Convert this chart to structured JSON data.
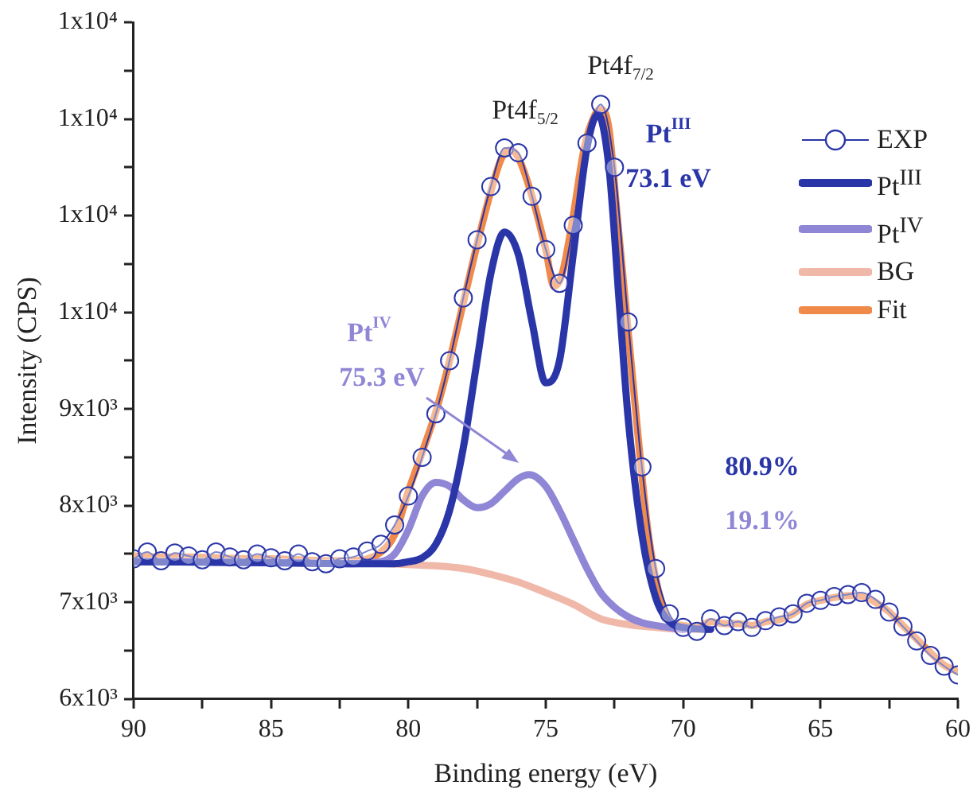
{
  "chart_data": {
    "type": "line",
    "xlabel": "Binding energy (eV)",
    "ylabel": "Intensity (CPS)",
    "xlim": [
      90,
      60
    ],
    "xticks": [
      90,
      {
        "value": 87.5,
        "label": null
      },
      85,
      {
        "value": 82.5,
        "label": null
      },
      80,
      {
        "value": 77.5,
        "label": null
      },
      75,
      {
        "value": 72.5,
        "label": null
      },
      70,
      {
        "value": 67.5,
        "label": null
      },
      65,
      {
        "value": 62.5,
        "label": null
      },
      60
    ],
    "ylim": [
      6000,
      13000
    ],
    "yticks": [
      {
        "value": 6000,
        "label": "6x10³"
      },
      {
        "value": 6500,
        "label": null
      },
      {
        "value": 7000,
        "label": "7x10³"
      },
      {
        "value": 7500,
        "label": null
      },
      {
        "value": 8000,
        "label": "8x10³"
      },
      {
        "value": 8500,
        "label": null
      },
      {
        "value": 9000,
        "label": "9x10³"
      },
      {
        "value": 9500,
        "label": null
      },
      {
        "value": 10000,
        "label": "1x10⁴"
      },
      {
        "value": 10500,
        "label": null
      },
      {
        "value": 11000,
        "label": "1x10⁴"
      },
      {
        "value": 11500,
        "label": null
      },
      {
        "value": 12000,
        "label": "1x10⁴"
      },
      {
        "value": 12500,
        "label": null
      },
      {
        "value": 13000,
        "label": "1x10⁴"
      }
    ],
    "grid": false,
    "legend": "top right",
    "series": [
      {
        "name": "EXP",
        "color": "#2a36a8",
        "marker": "circle",
        "x": [
          90,
          89.5,
          89,
          88.5,
          88,
          87.5,
          87,
          86.5,
          86,
          85.5,
          85,
          84.5,
          84,
          83.5,
          83,
          82.5,
          82,
          81.5,
          81,
          80.5,
          80,
          79.5,
          79,
          78.5,
          78,
          77.5,
          77,
          76.5,
          76,
          75.5,
          75,
          74.5,
          74,
          73.5,
          73,
          72.5,
          72,
          71.5,
          71,
          70.5,
          70,
          69.5,
          69,
          68.5,
          68,
          67.5,
          67,
          66.5,
          66,
          65.5,
          65,
          64.5,
          64,
          63.5,
          63,
          62.5,
          62,
          61.5,
          61,
          60.5,
          60
        ],
        "values": [
          7450,
          7520,
          7430,
          7510,
          7480,
          7440,
          7520,
          7470,
          7440,
          7500,
          7460,
          7430,
          7500,
          7420,
          7400,
          7450,
          7470,
          7530,
          7600,
          7800,
          8100,
          8500,
          8950,
          9500,
          10150,
          10750,
          11300,
          11700,
          11650,
          11200,
          10650,
          10300,
          10900,
          11750,
          12150,
          11500,
          9900,
          8400,
          7350,
          6880,
          6740,
          6700,
          6830,
          6760,
          6800,
          6740,
          6810,
          6850,
          6880,
          6990,
          7020,
          7060,
          7080,
          7100,
          7030,
          6900,
          6750,
          6600,
          6450,
          6340,
          6250
        ]
      },
      {
        "name": "Pt$^{III}$",
        "color": "#2a36a8",
        "marker": "none",
        "x": [
          90,
          85,
          82,
          81,
          80.5,
          80,
          79.5,
          79,
          78.5,
          78,
          77.5,
          77,
          76.5,
          76,
          75.5,
          75,
          74.5,
          74,
          73.5,
          73.1,
          72.7,
          72.3,
          72,
          71.5,
          71,
          70.5,
          70,
          69
        ],
        "values": [
          7420,
          7410,
          7400,
          7400,
          7400,
          7420,
          7460,
          7600,
          7950,
          8600,
          9500,
          10400,
          10830,
          10600,
          9900,
          9270,
          9500,
          10600,
          11700,
          12050,
          11500,
          10000,
          8900,
          7700,
          7050,
          6800,
          6740,
          6720
        ]
      },
      {
        "name": "Pt$^{IV}$",
        "color": "#8f86d6",
        "marker": "none",
        "x": [
          90,
          85,
          82,
          81,
          80.5,
          80,
          79.5,
          79,
          78.5,
          78,
          77.5,
          77,
          76.5,
          76,
          75.6,
          75,
          74.5,
          74,
          73.5,
          73,
          72.5,
          72,
          71.5,
          71,
          70.5,
          70
        ],
        "values": [
          7420,
          7410,
          7400,
          7420,
          7500,
          7750,
          8100,
          8240,
          8200,
          8060,
          7980,
          8020,
          8150,
          8280,
          8320,
          8200,
          7950,
          7650,
          7350,
          7100,
          6950,
          6850,
          6790,
          6760,
          6740,
          6720
        ]
      },
      {
        "name": "BG",
        "color": "#f0b8a8",
        "marker": "none",
        "x": [
          90,
          85,
          82,
          80,
          78,
          77,
          76,
          75,
          74,
          73,
          72,
          71,
          70,
          69
        ],
        "values": [
          7430,
          7420,
          7410,
          7390,
          7350,
          7290,
          7210,
          7100,
          6980,
          6830,
          6770,
          6740,
          6720,
          6720
        ]
      },
      {
        "name": "Fit",
        "color": "#f08a4b",
        "marker": "none",
        "x": [
          90,
          89,
          88,
          87,
          86,
          85,
          84,
          83,
          82,
          81.5,
          81,
          80.5,
          80,
          79.5,
          79,
          78.5,
          78,
          77.5,
          77,
          76.6,
          76.3,
          76,
          75.5,
          75,
          74.7,
          74.4,
          74,
          73.6,
          73.2,
          73,
          72.7,
          72.4,
          72,
          71.6,
          71.3,
          71,
          70.7,
          70.4,
          70,
          69.5,
          69,
          68.5,
          68,
          67.5,
          67,
          66.5,
          66,
          65.5,
          65,
          64.5,
          64,
          63.7,
          63.3,
          63,
          62.5,
          62,
          61.5,
          61,
          60.5,
          60
        ],
        "values": [
          7480,
          7470,
          7470,
          7460,
          7450,
          7450,
          7440,
          7430,
          7430,
          7450,
          7520,
          7700,
          8150,
          8550,
          8970,
          9500,
          10100,
          10700,
          11250,
          11600,
          11680,
          11600,
          11200,
          10650,
          10270,
          10400,
          11000,
          11700,
          12050,
          12100,
          11900,
          11000,
          9800,
          8600,
          7780,
          7250,
          6930,
          6790,
          6760,
          6740,
          6800,
          6780,
          6780,
          6760,
          6800,
          6820,
          6880,
          6980,
          7020,
          7050,
          7070,
          7070,
          7050,
          7000,
          6900,
          6760,
          6620,
          6480,
          6350,
          6280
        ]
      }
    ],
    "annotations": [
      "Pt4f$_{5/2}$",
      "Pt4f$_{7/2}$",
      "Pt$^{III}$",
      "73.1 eV",
      "Pt$^{IV}$",
      "75.3 eV",
      "80.9%",
      "19.1%"
    ]
  }
}
